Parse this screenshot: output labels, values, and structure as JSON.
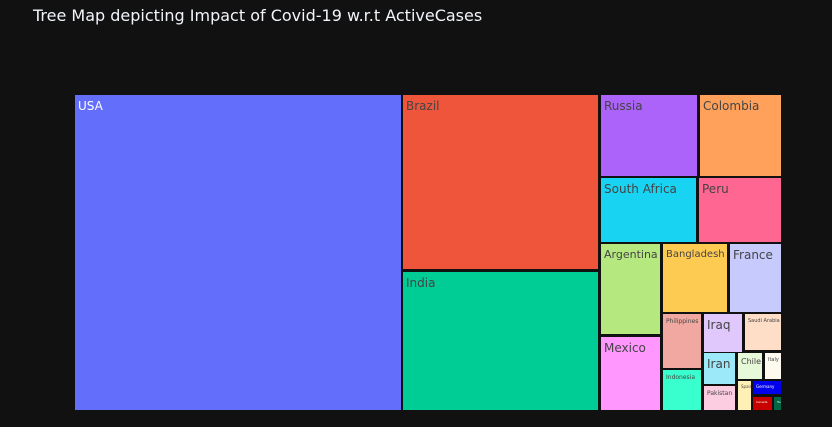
{
  "chart_data": {
    "type": "treemap",
    "title": "Tree Map depicting Impact of Covid-19 w.r.t ActiveCases",
    "items": [
      {
        "label": "USA",
        "color": "#636efa"
      },
      {
        "label": "Brazil",
        "color": "#ef553b"
      },
      {
        "label": "India",
        "color": "#00cc96"
      },
      {
        "label": "Russia",
        "color": "#ab63fa"
      },
      {
        "label": "Colombia",
        "color": "#ffa15a"
      },
      {
        "label": "South Africa",
        "color": "#19d3f3"
      },
      {
        "label": "Peru",
        "color": "#ff6692"
      },
      {
        "label": "Argentina",
        "color": "#b6e880"
      },
      {
        "label": "Bangladesh",
        "color": "#fecb52"
      },
      {
        "label": "France",
        "color": "#c6cafd"
      },
      {
        "label": "Mexico",
        "color": "#ff97ff"
      },
      {
        "label": "Philippines",
        "color": "#f0a8a0"
      },
      {
        "label": "Iraq",
        "color": "#e1c8fc"
      },
      {
        "label": "Saudi Arabia",
        "color": "#ffdec8"
      },
      {
        "label": "Iran",
        "color": "#9ce9f9"
      },
      {
        "label": "Chile",
        "color": "#e6f9d8"
      },
      {
        "label": "Italy",
        "color": "#fffaf0"
      },
      {
        "label": "Indonesia",
        "color": "#39ffce"
      },
      {
        "label": "Pakistan",
        "color": "#fccce0"
      },
      {
        "label": "Spain",
        "color": "#fff0b5"
      },
      {
        "label": "Germany",
        "color": "#0000ee"
      },
      {
        "label": "Canada",
        "color": "#c80000"
      },
      {
        "label": "Turkey",
        "color": "#006644"
      }
    ]
  }
}
